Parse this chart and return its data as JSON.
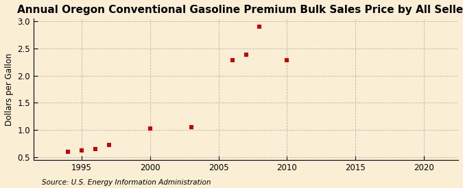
{
  "title": "Annual Oregon Conventional Gasoline Premium Bulk Sales Price by All Sellers",
  "ylabel": "Dollars per Gallon",
  "source": "Source: U.S. Energy Information Administration",
  "background_color": "#faefd4",
  "marker_color": "#cc0000",
  "years": [
    1994,
    1995,
    1996,
    1997,
    2000,
    2003,
    2006,
    2007,
    2008,
    2010
  ],
  "values": [
    0.6,
    0.62,
    0.65,
    0.72,
    1.02,
    1.05,
    2.28,
    2.39,
    2.9,
    2.28
  ],
  "xlim": [
    1991.5,
    2022.5
  ],
  "ylim": [
    0.45,
    3.05
  ],
  "yticks": [
    0.5,
    1.0,
    1.5,
    2.0,
    2.5,
    3.0
  ],
  "xticks": [
    1995,
    2000,
    2005,
    2010,
    2015,
    2020
  ],
  "grid_color": "#aaaaaa",
  "title_fontsize": 11,
  "label_fontsize": 8.5,
  "tick_fontsize": 8.5,
  "source_fontsize": 7.5,
  "marker_size": 4.5
}
